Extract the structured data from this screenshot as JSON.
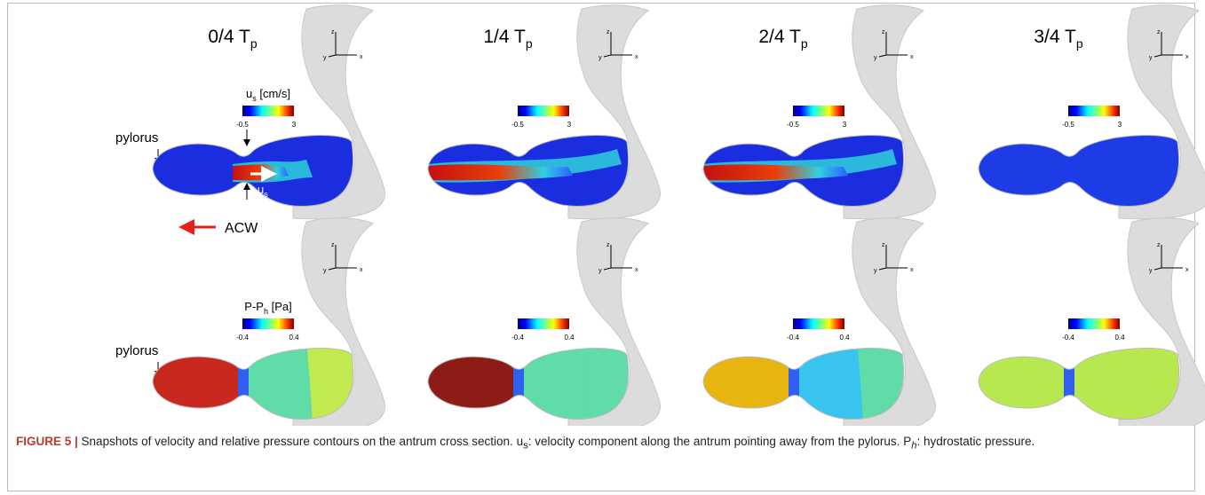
{
  "columns": [
    {
      "label": "0/4 T",
      "sub": "p"
    },
    {
      "label": "1/4 T",
      "sub": "p"
    },
    {
      "label": "2/4 T",
      "sub": "p"
    },
    {
      "label": "3/4 T",
      "sub": "p"
    }
  ],
  "axes": {
    "z": "z",
    "y": "y",
    "x": "x"
  },
  "velocity": {
    "symbol": "u",
    "sub": "s",
    "unit": " [cm/s]",
    "min": -0.5,
    "max": 3
  },
  "pressure": {
    "symbol": "P-P",
    "sub": "h",
    "unit": " [Pa]",
    "min": -0.4,
    "max": 0.4
  },
  "annotations": {
    "pylorus": "pylorus",
    "jet_symbol": "u",
    "jet_sub": "s",
    "acw": "ACW"
  },
  "caption": {
    "label": "FIGURE 5 |",
    "text1": " Snapshots of velocity and relative pressure contours on the antrum cross section. ",
    "sym1": "u",
    "sym1_sub": "s",
    "text2": ": velocity component along the antrum pointing away from the pylorus. ",
    "sym2": "P",
    "sym2_sub": "h",
    "text3": ": hydrostatic pressure."
  }
}
